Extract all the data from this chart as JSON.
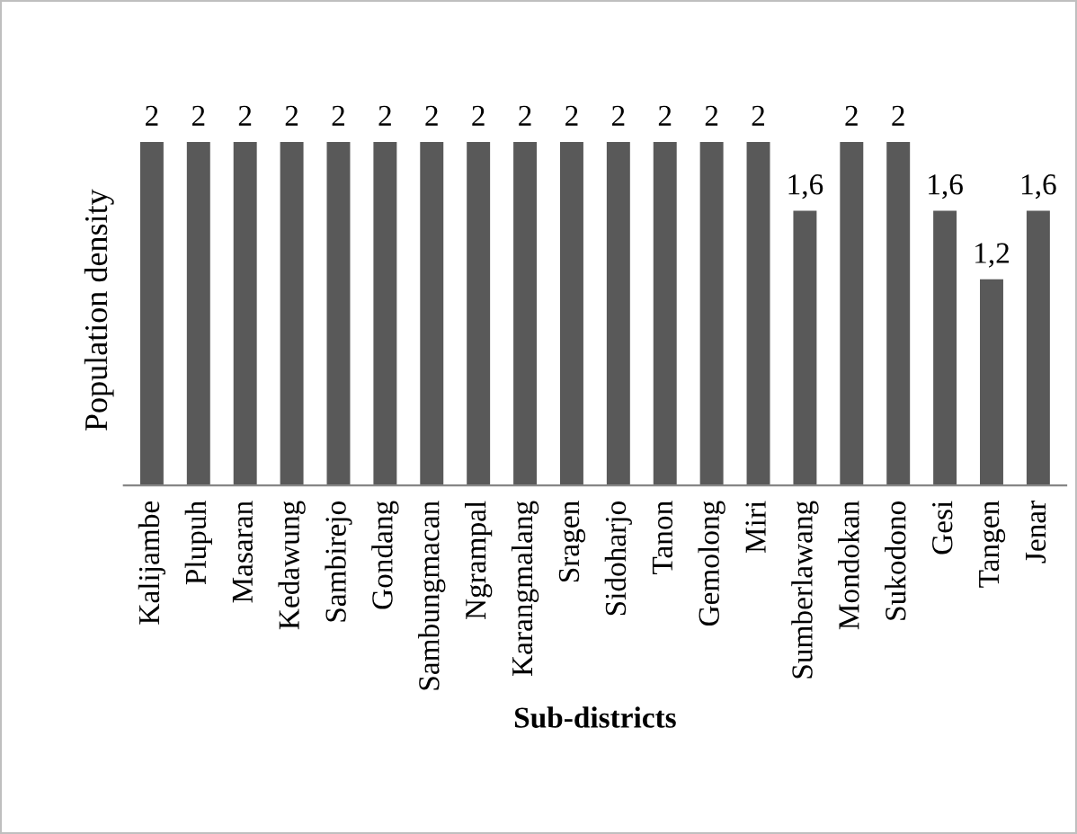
{
  "chart_data": {
    "type": "bar",
    "xlabel": "Sub-districts",
    "ylabel": "Population density",
    "categories": [
      "Kalijambe",
      "Plupuh",
      "Masaran",
      "Kedawung",
      "Sambirejo",
      "Gondang",
      "Sambungmacan",
      "Ngrampal",
      "Karangmalang",
      "Sragen",
      "Sidoharjo",
      "Tanon",
      "Gemolong",
      "Miri",
      "Sumberlawang",
      "Mondokan",
      "Sukodono",
      "Gesi",
      "Tangen",
      "Jenar"
    ],
    "values": [
      2,
      2,
      2,
      2,
      2,
      2,
      2,
      2,
      2,
      2,
      2,
      2,
      2,
      2,
      1.6,
      2,
      2,
      1.6,
      1.2,
      1.6
    ],
    "value_labels": [
      "2",
      "2",
      "2",
      "2",
      "2",
      "2",
      "2",
      "2",
      "2",
      "2",
      "2",
      "2",
      "2",
      "2",
      "1,6",
      "2",
      "2",
      "1,6",
      "1,2",
      "1,6"
    ],
    "color": "#595959",
    "grid": false,
    "legend": false
  }
}
